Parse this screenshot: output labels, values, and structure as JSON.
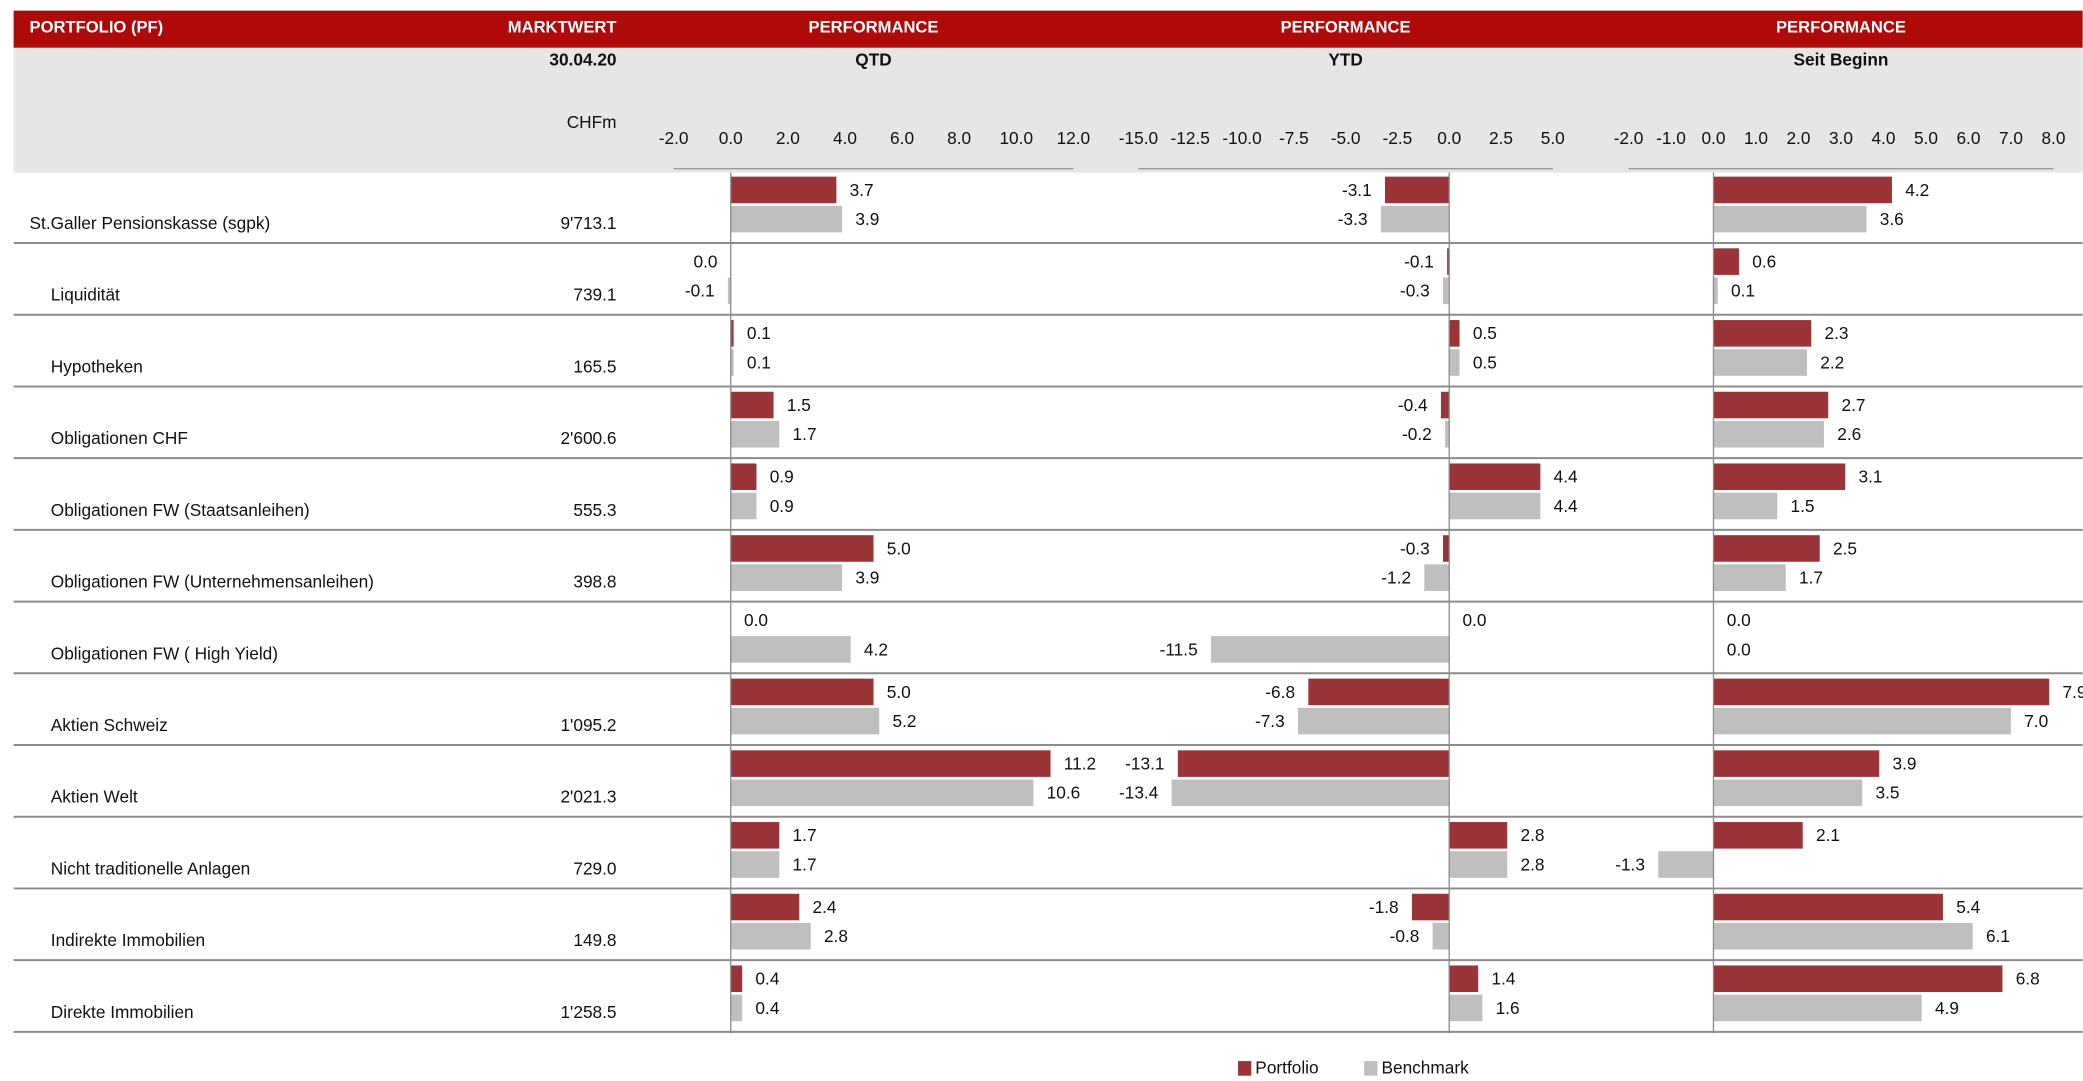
{
  "table": {
    "header": "PORTFOLIO (PF)",
    "value_header": "MARKTWERT",
    "date": "30.04.20",
    "unit": "CHFm",
    "rows": [
      {
        "label": "St.Galler Pensionskasse (sgpk)",
        "value": "9'713.1"
      },
      {
        "label": "Liquidität",
        "value": "739.1"
      },
      {
        "label": "Hypotheken",
        "value": "165.5"
      },
      {
        "label": "Obligationen CHF",
        "value": "2'600.6"
      },
      {
        "label": "Obligationen FW (Staatsanleihen)",
        "value": "555.3"
      },
      {
        "label": "Obligationen FW (Unternehmensanleihen)",
        "value": "398.8"
      },
      {
        "label": "Obligationen FW ( High Yield)",
        "value": null
      },
      {
        "label": "Aktien Schweiz",
        "value": "1'095.2"
      },
      {
        "label": "Aktien Welt",
        "value": "2'021.3"
      },
      {
        "label": "Nicht traditionelle Anlagen",
        "value": "729.0"
      },
      {
        "label": "Indirekte Immobilien",
        "value": "149.8"
      },
      {
        "label": "Direkte Immobilien",
        "value": "1'258.5"
      }
    ]
  },
  "chart_data": [
    {
      "type": "hbar",
      "title": "PERFORMANCE",
      "subtitle": "QTD",
      "xlim": [
        -2,
        12
      ],
      "xticks": [
        {
          "value": -2,
          "label": "-2.0"
        },
        {
          "value": 0,
          "label": "0.0"
        },
        {
          "value": 2,
          "label": "2.0"
        },
        {
          "value": 4,
          "label": "4.0"
        },
        {
          "value": 6,
          "label": "6.0"
        },
        {
          "value": 8,
          "label": "8.0"
        },
        {
          "value": 10,
          "label": "10.0"
        },
        {
          "value": 12,
          "label": "12.0"
        }
      ],
      "series": [
        {
          "name": "Portfolio",
          "color": "#9a3438",
          "values": [
            3.7,
            0.0,
            0.1,
            1.5,
            0.9,
            5.0,
            0.0,
            5.0,
            11.2,
            1.7,
            2.4,
            0.4
          ],
          "value_labels": [
            "3.7",
            "0.0",
            "0.1",
            "1.5",
            "0.9",
            "5.0",
            "0.0",
            "5.0",
            "11.2",
            "1.7",
            "2.4",
            "0.4"
          ]
        },
        {
          "name": "Benchmark",
          "color": "#bfbfbf",
          "values": [
            3.9,
            -0.1,
            0.1,
            1.7,
            0.9,
            3.9,
            4.2,
            5.2,
            10.6,
            1.7,
            2.8,
            0.4
          ],
          "value_labels": [
            "3.9",
            "-0.1",
            "0.1",
            "1.7",
            "0.9",
            "3.9",
            "4.2",
            "5.2",
            "10.6",
            "1.7",
            "2.8",
            "0.4"
          ]
        }
      ]
    },
    {
      "type": "hbar",
      "title": "PERFORMANCE",
      "subtitle": "YTD",
      "xlim": [
        -15,
        5
      ],
      "xticks": [
        {
          "value": -15,
          "label": "-15.0"
        },
        {
          "value": -12.5,
          "label": "-12.5"
        },
        {
          "value": -10,
          "label": "-10.0"
        },
        {
          "value": -7.5,
          "label": "-7.5"
        },
        {
          "value": -5,
          "label": "-5.0"
        },
        {
          "value": -2.5,
          "label": "-2.5"
        },
        {
          "value": 0,
          "label": "0.0"
        },
        {
          "value": 2.5,
          "label": "2.5"
        },
        {
          "value": 5,
          "label": "5.0"
        }
      ],
      "series": [
        {
          "color": "#9a3438",
          "values": [
            -3.1,
            -0.1,
            0.5,
            -0.4,
            4.4,
            -0.3,
            0.0,
            -6.8,
            -13.1,
            2.8,
            -1.8,
            1.4
          ],
          "value_labels": [
            "-3.1",
            "-0.1",
            "0.5",
            "-0.4",
            "4.4",
            "-0.3",
            "0.0",
            "-6.8",
            "-13.1",
            "2.8",
            "-1.8",
            "1.4"
          ]
        },
        {
          "color": "#bfbfbf",
          "values": [
            -3.3,
            -0.3,
            0.5,
            -0.2,
            4.4,
            -1.2,
            -11.5,
            -7.3,
            -13.4,
            2.8,
            -0.8,
            1.6
          ],
          "value_labels": [
            "-3.3",
            "-0.3",
            "0.5",
            "-0.2",
            "4.4",
            "-1.2",
            "-11.5",
            "-7.3",
            "-13.4",
            "2.8",
            "-0.8",
            "1.6"
          ]
        }
      ]
    },
    {
      "type": "hbar",
      "title": "PERFORMANCE",
      "subtitle": "Seit Beginn",
      "xlim": [
        -2,
        8
      ],
      "xticks": [
        {
          "value": -2,
          "label": "-2.0"
        },
        {
          "value": -1,
          "label": "-1.0"
        },
        {
          "value": 0,
          "label": "0.0"
        },
        {
          "value": 1,
          "label": "1.0"
        },
        {
          "value": 2,
          "label": "2.0"
        },
        {
          "value": 3,
          "label": "3.0"
        },
        {
          "value": 4,
          "label": "4.0"
        },
        {
          "value": 5,
          "label": "5.0"
        },
        {
          "value": 6,
          "label": "6.0"
        },
        {
          "value": 7,
          "label": "7.0"
        },
        {
          "value": 8,
          "label": "8.0"
        }
      ],
      "series": [
        {
          "color": "#9a3438",
          "values": [
            4.2,
            0.6,
            2.3,
            2.7,
            3.1,
            2.5,
            0.0,
            7.9,
            3.9,
            2.1,
            5.4,
            6.8
          ],
          "value_labels": [
            "4.2",
            "0.6",
            "2.3",
            "2.7",
            "3.1",
            "2.5",
            "0.0",
            "7.9",
            "3.9",
            "2.1",
            "5.4",
            "6.8"
          ]
        },
        {
          "color": "#bfbfbf",
          "values": [
            3.6,
            0.1,
            2.2,
            2.6,
            1.5,
            1.7,
            0.0,
            7.0,
            3.5,
            -1.3,
            6.1,
            4.9
          ],
          "value_labels": [
            "3.6",
            "0.1",
            "2.2",
            "2.6",
            "1.5",
            "1.7",
            "0.0",
            "7.0",
            "3.5",
            "-1.3",
            "6.1",
            "4.9"
          ]
        }
      ]
    }
  ]
}
